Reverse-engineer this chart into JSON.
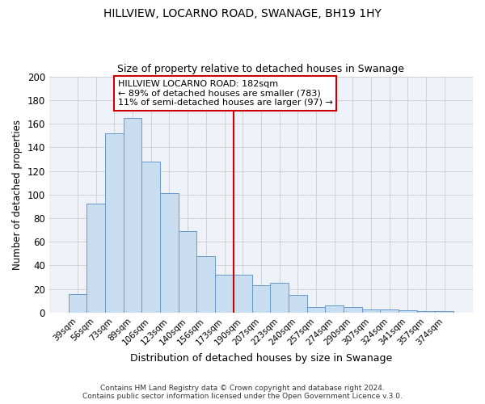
{
  "title": "HILLVIEW, LOCARNO ROAD, SWANAGE, BH19 1HY",
  "subtitle": "Size of property relative to detached houses in Swanage",
  "xlabel": "Distribution of detached houses by size in Swanage",
  "ylabel": "Number of detached properties",
  "categories": [
    "39sqm",
    "56sqm",
    "73sqm",
    "89sqm",
    "106sqm",
    "123sqm",
    "140sqm",
    "156sqm",
    "173sqm",
    "190sqm",
    "207sqm",
    "223sqm",
    "240sqm",
    "257sqm",
    "274sqm",
    "290sqm",
    "307sqm",
    "324sqm",
    "341sqm",
    "357sqm",
    "374sqm"
  ],
  "values": [
    16,
    92,
    152,
    165,
    128,
    101,
    69,
    48,
    32,
    32,
    23,
    25,
    15,
    5,
    6,
    5,
    3,
    3,
    2,
    1,
    1
  ],
  "bar_color": "#c8ddf0",
  "bar_edge_color": "#6699cc",
  "vline_color": "#cc0000",
  "annotation_title": "HILLVIEW LOCARNO ROAD: 182sqm",
  "annotation_line1": "← 89% of detached houses are smaller (783)",
  "annotation_line2": "11% of semi-detached houses are larger (97) →",
  "annotation_box_color": "#cc0000",
  "ylim": [
    0,
    200
  ],
  "yticks": [
    0,
    20,
    40,
    60,
    80,
    100,
    120,
    140,
    160,
    180,
    200
  ],
  "grid_color": "#cccccc",
  "plot_bg_color": "#eef2f8",
  "fig_bg_color": "#ffffff",
  "footer1": "Contains HM Land Registry data © Crown copyright and database right 2024.",
  "footer2": "Contains public sector information licensed under the Open Government Licence v.3.0.",
  "bin_width": 17
}
